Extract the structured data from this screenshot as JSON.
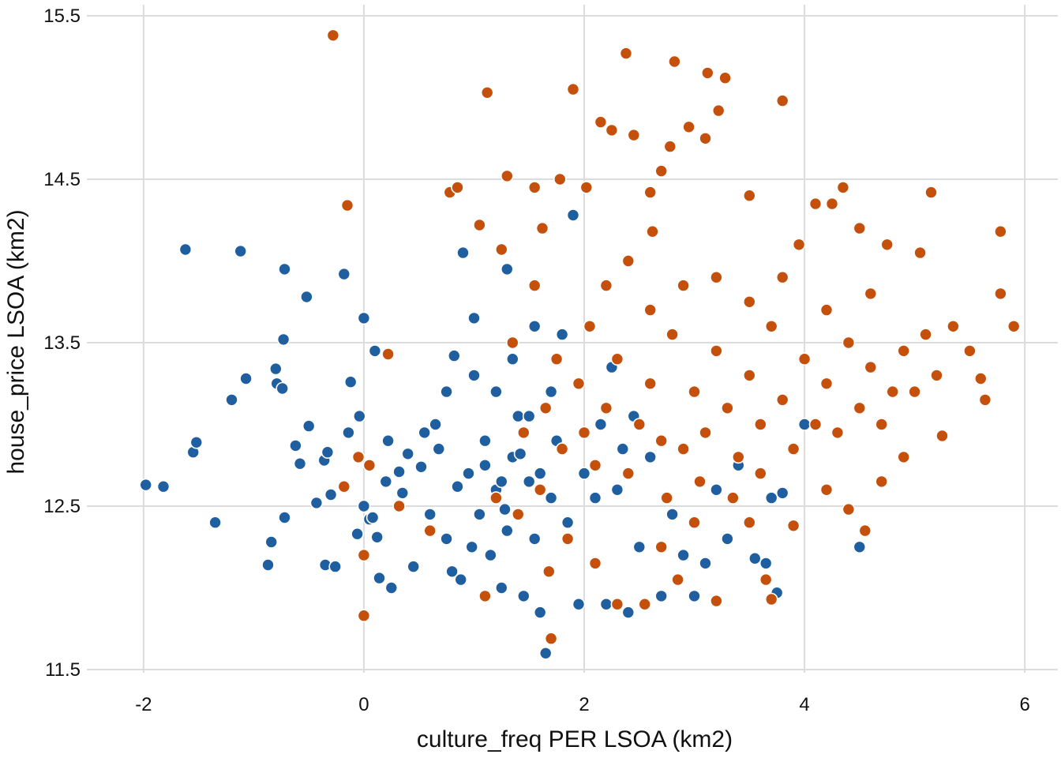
{
  "chart_data": {
    "type": "scatter",
    "title": "",
    "xlabel": "culture_freq PER LSOA (km2)",
    "ylabel": "house_price LSOA (km2)",
    "xlim": [
      -2.3,
      6.3
    ],
    "ylim": [
      11.5,
      15.5
    ],
    "x_ticks": [
      -2,
      0,
      2,
      4,
      6
    ],
    "y_ticks": [
      11.5,
      12.5,
      13.5,
      14.5,
      15.5
    ],
    "x_tick_labels": [
      "-2",
      "0",
      "2",
      "4",
      "6"
    ],
    "y_tick_labels": [
      "11.5",
      "12.5",
      "13.5",
      "14.5",
      "15.5"
    ],
    "grid": true,
    "legend": "none",
    "series": [
      {
        "color": "#1f5fa0",
        "points": [
          [
            -1.98,
            12.63
          ],
          [
            -1.82,
            12.62
          ],
          [
            -1.62,
            14.07
          ],
          [
            -1.55,
            12.83
          ],
          [
            -1.52,
            12.89
          ],
          [
            -1.35,
            12.4
          ],
          [
            -1.2,
            13.15
          ],
          [
            -1.12,
            14.06
          ],
          [
            -1.07,
            13.28
          ],
          [
            -0.87,
            12.14
          ],
          [
            -0.84,
            12.28
          ],
          [
            -0.8,
            13.34
          ],
          [
            -0.79,
            13.25
          ],
          [
            -0.74,
            13.22
          ],
          [
            -0.73,
            13.52
          ],
          [
            -0.72,
            13.95
          ],
          [
            -0.72,
            12.43
          ],
          [
            -0.62,
            12.87
          ],
          [
            -0.58,
            12.76
          ],
          [
            -0.52,
            13.78
          ],
          [
            -0.5,
            12.99
          ],
          [
            -0.43,
            12.52
          ],
          [
            -0.36,
            12.78
          ],
          [
            -0.35,
            12.14
          ],
          [
            -0.33,
            12.83
          ],
          [
            -0.3,
            12.57
          ],
          [
            -0.26,
            12.13
          ],
          [
            -0.18,
            13.92
          ],
          [
            -0.14,
            12.95
          ],
          [
            -0.12,
            13.26
          ],
          [
            -0.06,
            12.33
          ],
          [
            -0.04,
            13.05
          ],
          [
            0.0,
            12.5
          ],
          [
            0.0,
            13.65
          ],
          [
            0.05,
            12.42
          ],
          [
            0.08,
            12.43
          ],
          [
            0.1,
            13.45
          ],
          [
            0.12,
            12.31
          ],
          [
            0.14,
            12.06
          ],
          [
            0.2,
            12.65
          ],
          [
            0.22,
            12.9
          ],
          [
            0.25,
            12.0
          ],
          [
            0.32,
            12.71
          ],
          [
            0.35,
            12.58
          ],
          [
            0.4,
            12.82
          ],
          [
            0.45,
            12.13
          ],
          [
            0.52,
            12.74
          ],
          [
            0.6,
            12.45
          ],
          [
            0.68,
            12.85
          ],
          [
            0.75,
            12.3
          ],
          [
            0.8,
            12.1
          ],
          [
            0.82,
            13.42
          ],
          [
            0.88,
            12.05
          ],
          [
            0.9,
            14.05
          ],
          [
            0.95,
            12.7
          ],
          [
            1.0,
            13.65
          ],
          [
            1.05,
            12.45
          ],
          [
            1.1,
            12.9
          ],
          [
            1.15,
            12.2
          ],
          [
            1.2,
            12.6
          ],
          [
            1.25,
            12.0
          ],
          [
            1.3,
            12.35
          ],
          [
            1.35,
            12.8
          ],
          [
            1.4,
            13.05
          ],
          [
            1.45,
            11.95
          ],
          [
            1.5,
            12.65
          ],
          [
            1.55,
            12.3
          ],
          [
            1.6,
            11.85
          ],
          [
            1.65,
            11.6
          ],
          [
            1.7,
            12.55
          ],
          [
            1.75,
            12.9
          ],
          [
            1.85,
            12.4
          ],
          [
            1.9,
            14.28
          ],
          [
            1.95,
            11.9
          ],
          [
            2.0,
            12.7
          ],
          [
            2.1,
            12.55
          ],
          [
            2.2,
            11.9
          ],
          [
            2.3,
            12.6
          ],
          [
            2.4,
            11.85
          ],
          [
            2.5,
            12.25
          ],
          [
            2.6,
            12.8
          ],
          [
            2.7,
            11.95
          ],
          [
            2.8,
            12.45
          ],
          [
            2.9,
            12.2
          ],
          [
            3.0,
            11.95
          ],
          [
            3.1,
            12.15
          ],
          [
            3.2,
            12.6
          ],
          [
            3.3,
            12.3
          ],
          [
            3.4,
            12.75
          ],
          [
            3.5,
            12.4
          ],
          [
            3.55,
            12.18
          ],
          [
            3.65,
            12.15
          ],
          [
            3.7,
            12.55
          ],
          [
            3.75,
            11.97
          ],
          [
            3.8,
            12.58
          ],
          [
            4.0,
            13.0
          ],
          [
            4.5,
            12.25
          ],
          [
            1.0,
            13.3
          ],
          [
            1.2,
            13.2
          ],
          [
            1.35,
            13.4
          ],
          [
            1.5,
            13.05
          ],
          [
            1.7,
            13.2
          ],
          [
            1.8,
            13.55
          ],
          [
            0.75,
            13.2
          ],
          [
            0.65,
            13.0
          ],
          [
            0.55,
            12.95
          ],
          [
            1.1,
            12.75
          ],
          [
            1.25,
            12.65
          ],
          [
            1.4,
            12.45
          ],
          [
            1.6,
            12.7
          ],
          [
            0.98,
            12.25
          ],
          [
            2.15,
            13.0
          ],
          [
            2.25,
            13.35
          ],
          [
            2.45,
            13.05
          ],
          [
            2.35,
            12.85
          ],
          [
            1.55,
            13.6
          ],
          [
            1.3,
            13.95
          ],
          [
            1.28,
            12.48
          ],
          [
            1.42,
            12.82
          ],
          [
            0.85,
            12.62
          ]
        ]
      },
      {
        "color": "#c5500b",
        "points": [
          [
            -0.28,
            15.38
          ],
          [
            -0.15,
            14.34
          ],
          [
            -0.18,
            12.62
          ],
          [
            0.0,
            11.83
          ],
          [
            0.0,
            12.2
          ],
          [
            -0.05,
            12.8
          ],
          [
            0.05,
            12.75
          ],
          [
            0.22,
            13.43
          ],
          [
            0.32,
            12.5
          ],
          [
            0.6,
            12.35
          ],
          [
            0.78,
            14.42
          ],
          [
            0.85,
            14.45
          ],
          [
            1.05,
            14.22
          ],
          [
            1.1,
            11.95
          ],
          [
            1.12,
            15.03
          ],
          [
            1.25,
            14.07
          ],
          [
            1.3,
            14.52
          ],
          [
            1.55,
            14.45
          ],
          [
            1.62,
            14.2
          ],
          [
            1.68,
            12.1
          ],
          [
            1.7,
            11.69
          ],
          [
            1.78,
            14.5
          ],
          [
            1.9,
            15.05
          ],
          [
            2.02,
            14.45
          ],
          [
            2.15,
            14.85
          ],
          [
            2.25,
            14.8
          ],
          [
            2.38,
            15.27
          ],
          [
            2.45,
            14.77
          ],
          [
            2.6,
            14.42
          ],
          [
            2.62,
            14.18
          ],
          [
            2.7,
            14.55
          ],
          [
            2.78,
            14.7
          ],
          [
            2.82,
            15.22
          ],
          [
            2.95,
            14.82
          ],
          [
            3.1,
            14.75
          ],
          [
            3.12,
            15.15
          ],
          [
            3.22,
            14.92
          ],
          [
            3.28,
            15.12
          ],
          [
            3.5,
            14.4
          ],
          [
            3.8,
            14.98
          ],
          [
            3.95,
            14.1
          ],
          [
            4.1,
            14.35
          ],
          [
            4.25,
            14.35
          ],
          [
            4.35,
            14.45
          ],
          [
            4.5,
            14.2
          ],
          [
            4.6,
            13.8
          ],
          [
            4.75,
            14.1
          ],
          [
            5.05,
            14.05
          ],
          [
            5.15,
            14.42
          ],
          [
            5.78,
            14.18
          ],
          [
            5.78,
            13.8
          ],
          [
            5.9,
            13.6
          ],
          [
            5.6,
            13.28
          ],
          [
            5.64,
            13.15
          ],
          [
            5.25,
            12.93
          ],
          [
            4.9,
            12.8
          ],
          [
            4.7,
            12.65
          ],
          [
            4.55,
            12.35
          ],
          [
            4.4,
            12.48
          ],
          [
            4.2,
            12.6
          ],
          [
            3.9,
            12.38
          ],
          [
            3.7,
            11.93
          ],
          [
            3.65,
            12.05
          ],
          [
            3.5,
            12.4
          ],
          [
            3.2,
            11.92
          ],
          [
            2.85,
            12.05
          ],
          [
            2.7,
            12.25
          ],
          [
            2.55,
            11.9
          ],
          [
            2.3,
            11.9
          ],
          [
            2.1,
            12.15
          ],
          [
            1.85,
            12.3
          ],
          [
            1.6,
            12.6
          ],
          [
            1.4,
            12.45
          ],
          [
            1.2,
            12.55
          ],
          [
            1.45,
            12.95
          ],
          [
            1.65,
            13.1
          ],
          [
            1.8,
            12.85
          ],
          [
            1.95,
            13.25
          ],
          [
            2.0,
            12.95
          ],
          [
            2.1,
            12.75
          ],
          [
            2.2,
            13.1
          ],
          [
            2.3,
            13.4
          ],
          [
            2.4,
            12.7
          ],
          [
            2.5,
            13.0
          ],
          [
            2.6,
            13.25
          ],
          [
            2.7,
            12.9
          ],
          [
            2.8,
            13.55
          ],
          [
            2.9,
            12.85
          ],
          [
            3.0,
            13.2
          ],
          [
            3.1,
            12.95
          ],
          [
            3.2,
            13.45
          ],
          [
            3.3,
            13.1
          ],
          [
            3.4,
            12.8
          ],
          [
            3.5,
            13.3
          ],
          [
            3.6,
            13.0
          ],
          [
            3.7,
            13.6
          ],
          [
            3.8,
            13.15
          ],
          [
            3.9,
            12.85
          ],
          [
            4.0,
            13.4
          ],
          [
            4.1,
            13.0
          ],
          [
            4.2,
            13.25
          ],
          [
            4.3,
            12.95
          ],
          [
            4.4,
            13.5
          ],
          [
            4.5,
            13.1
          ],
          [
            4.6,
            13.35
          ],
          [
            4.7,
            13.0
          ],
          [
            4.8,
            13.2
          ],
          [
            4.9,
            13.45
          ],
          [
            5.0,
            13.2
          ],
          [
            5.1,
            13.55
          ],
          [
            5.2,
            13.3
          ],
          [
            5.35,
            13.6
          ],
          [
            5.5,
            13.45
          ],
          [
            2.6,
            13.7
          ],
          [
            2.9,
            13.85
          ],
          [
            3.2,
            13.9
          ],
          [
            3.5,
            13.75
          ],
          [
            3.8,
            13.9
          ],
          [
            4.2,
            13.7
          ],
          [
            2.4,
            14.0
          ],
          [
            2.2,
            13.85
          ],
          [
            2.05,
            13.6
          ],
          [
            1.75,
            13.4
          ],
          [
            1.55,
            13.85
          ],
          [
            1.35,
            13.5
          ],
          [
            3.05,
            12.65
          ],
          [
            3.35,
            12.55
          ],
          [
            3.6,
            12.7
          ],
          [
            3.0,
            12.4
          ],
          [
            2.75,
            12.55
          ]
        ]
      }
    ]
  }
}
